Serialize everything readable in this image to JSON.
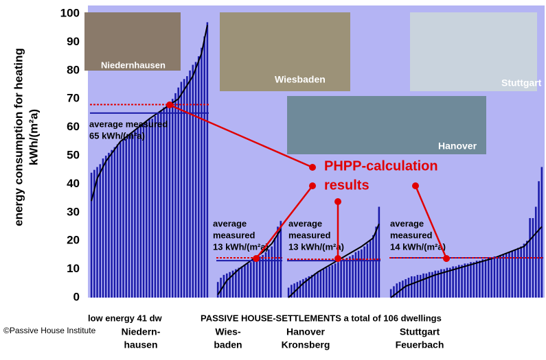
{
  "chart_data": {
    "type": "bar",
    "y_label": [
      "energy consumption for heating",
      "kWh/(m²a)"
    ],
    "ylim": [
      0,
      100
    ],
    "yticks": [
      0,
      10,
      20,
      30,
      40,
      50,
      60,
      70,
      80,
      90,
      100
    ],
    "bar_color": "#1a1aa8",
    "calc_color": "#000000",
    "measured_avg_color": "#1a1aa8",
    "calc_avg_color": "#e00000",
    "groups": [
      {
        "name": [
          "Niedern-",
          "hausen"
        ],
        "photo_label": "Niedernhausen",
        "values": [
          44,
          45,
          46,
          47,
          49,
          50,
          51,
          52,
          53,
          54,
          55,
          56,
          56,
          57,
          58,
          59,
          60,
          61,
          61,
          62,
          63,
          63,
          64,
          65,
          66,
          67,
          68,
          69,
          70,
          72,
          74,
          76,
          77,
          78,
          80,
          82,
          83,
          85,
          88,
          92,
          97
        ],
        "calc": {
          "x": [
            0,
            2,
            5,
            10,
            20,
            30,
            35,
            38,
            40
          ],
          "values": [
            34,
            42,
            48,
            55,
            63,
            70,
            78,
            86,
            96
          ]
        },
        "average_measured": 65,
        "average_calculated": 68,
        "average_label": [
          "average measured",
          "65 kWh/(m²a)"
        ]
      },
      {
        "name": [
          "Wies-",
          "baden"
        ],
        "photo_label": "Wiesbaden",
        "values": [
          5.5,
          7,
          8,
          8.5,
          9,
          9.5,
          10,
          10.5,
          11,
          11.5,
          12,
          12.5,
          13,
          14,
          14.5,
          15,
          16,
          17,
          18,
          21,
          25,
          27
        ],
        "calc": {
          "x": [
            0,
            3,
            7,
            11,
            15,
            18,
            21
          ],
          "values": [
            1,
            6,
            10,
            13,
            16,
            19,
            24
          ]
        },
        "average_measured": 13,
        "average_calculated": 14,
        "average_label": [
          "average",
          "measured",
          "13 kWh/(m²a)"
        ]
      },
      {
        "name": [
          "Hanover",
          "Kronsberg"
        ],
        "photo_label": "Hanover",
        "values": [
          3.5,
          4.5,
          5,
          5.5,
          6,
          6.5,
          7,
          7.5,
          8,
          8.5,
          9,
          9.5,
          10,
          10.5,
          11,
          11.5,
          12,
          12.5,
          13,
          13.5,
          14,
          14.5,
          15,
          16,
          16.5,
          17,
          18,
          19,
          20,
          22,
          25,
          32
        ],
        "calc": {
          "x": [
            0,
            5,
            10,
            15,
            20,
            25,
            29,
            31
          ],
          "values": [
            0,
            5,
            9,
            12,
            15,
            18,
            21,
            26
          ]
        },
        "average_measured": 13,
        "average_calculated": 13.5,
        "average_label": [
          "average",
          "measured",
          "13 kWh/(m²a)"
        ]
      },
      {
        "name": [
          "Stuttgart",
          "Feuerbach"
        ],
        "photo_label": "Stuttgart",
        "values": [
          3,
          4,
          5,
          5.5,
          6,
          6.5,
          7,
          7.5,
          7.5,
          8,
          8,
          8.5,
          8.5,
          9,
          9,
          9.5,
          9.5,
          10,
          10,
          10.5,
          10.5,
          11,
          11,
          11.5,
          11.5,
          12,
          12,
          12.5,
          12.5,
          13,
          13,
          13.5,
          13.5,
          14,
          14,
          14.5,
          14.5,
          15,
          15,
          15.5,
          16,
          16.5,
          17,
          17.5,
          18,
          19,
          20,
          28,
          28,
          32,
          41,
          46
        ],
        "calc": {
          "x": [
            0,
            5,
            15,
            25,
            35,
            45,
            51
          ],
          "values": [
            0,
            4,
            8,
            11,
            14,
            18,
            25
          ]
        },
        "average_measured": 14,
        "average_calculated": 14,
        "average_label": [
          "average",
          "measured",
          "14 kWh/(m²a)"
        ]
      }
    ],
    "annotation": [
      "PHPP-calculation",
      "results"
    ],
    "low_energy_label": "low energy 41 dw",
    "settlements_label": "PASSIVE HOUSE-SETTLEMENTS a total of 106 dwellings",
    "credit": "©Passive House Institute"
  }
}
